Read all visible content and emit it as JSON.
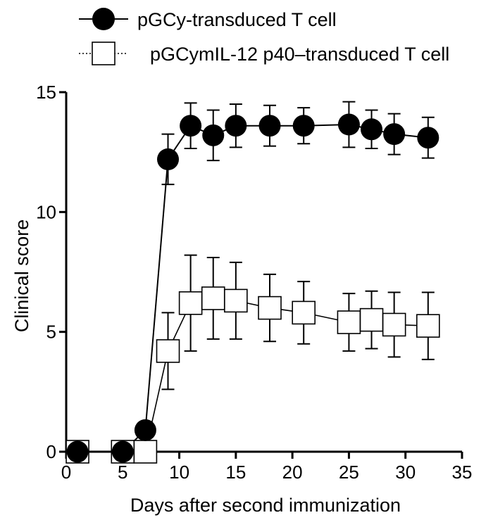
{
  "chart_data": {
    "type": "line",
    "xlabel": "Days after second immunization",
    "ylabel": "Clinical score",
    "xlim": [
      0,
      35
    ],
    "ylim": [
      0,
      15
    ],
    "xticks": [
      "0",
      "5",
      "10",
      "15",
      "20",
      "25",
      "30",
      "35"
    ],
    "yticks": [
      "0",
      "5",
      "10",
      "15"
    ],
    "legend_position": "top",
    "series": [
      {
        "name": "pGCy-transduced T cell",
        "marker": "filled-circle",
        "color": "#000000",
        "x": [
          1,
          5,
          7,
          9,
          11,
          13,
          15,
          18,
          21,
          25,
          27,
          29,
          32
        ],
        "y": [
          0,
          0,
          0.9,
          12.2,
          13.6,
          13.2,
          13.6,
          13.6,
          13.6,
          13.65,
          13.45,
          13.25,
          13.1
        ],
        "err": [
          0,
          0,
          0,
          1.05,
          0.95,
          1.05,
          0.9,
          0.85,
          0.75,
          0.95,
          0.8,
          0.85,
          0.85
        ]
      },
      {
        "name": "pGCymIL-12 p40–transduced T cell",
        "marker": "open-square",
        "color": "#000000",
        "x": [
          1,
          5,
          7,
          9,
          11,
          13,
          15,
          18,
          21,
          25,
          27,
          29,
          32
        ],
        "y": [
          0,
          0,
          0,
          4.2,
          6.2,
          6.4,
          6.3,
          6.0,
          5.8,
          5.4,
          5.5,
          5.3,
          5.25
        ],
        "err": [
          0,
          0,
          0,
          1.6,
          2.0,
          1.7,
          1.6,
          1.4,
          1.3,
          1.2,
          1.2,
          1.35,
          1.4
        ]
      }
    ]
  }
}
